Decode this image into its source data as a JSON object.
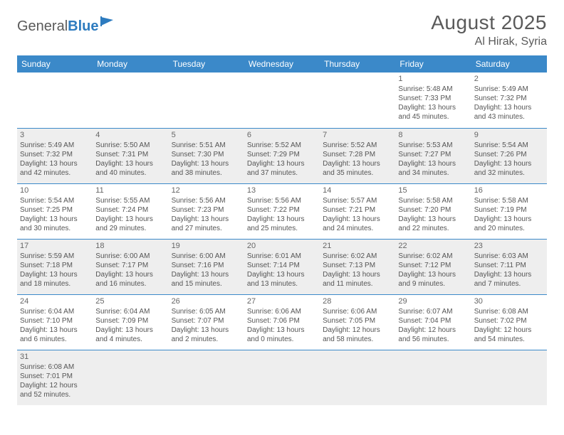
{
  "logo": {
    "text1": "General",
    "text2": "Blue"
  },
  "title": "August 2025",
  "location": "Al Hirak, Syria",
  "colors": {
    "header_bg": "#3b89c9",
    "header_text": "#ffffff",
    "row_shade": "#eeeeee",
    "row_plain": "#ffffff",
    "cell_border": "#3b89c9",
    "text": "#555555",
    "logo_blue": "#2d7bbf"
  },
  "weekdays": [
    "Sunday",
    "Monday",
    "Tuesday",
    "Wednesday",
    "Thursday",
    "Friday",
    "Saturday"
  ],
  "weeks": [
    [
      null,
      null,
      null,
      null,
      null,
      {
        "n": "1",
        "sr": "5:48 AM",
        "ss": "7:33 PM",
        "dl": "13 hours and 45 minutes."
      },
      {
        "n": "2",
        "sr": "5:49 AM",
        "ss": "7:32 PM",
        "dl": "13 hours and 43 minutes."
      }
    ],
    [
      {
        "n": "3",
        "sr": "5:49 AM",
        "ss": "7:32 PM",
        "dl": "13 hours and 42 minutes."
      },
      {
        "n": "4",
        "sr": "5:50 AM",
        "ss": "7:31 PM",
        "dl": "13 hours and 40 minutes."
      },
      {
        "n": "5",
        "sr": "5:51 AM",
        "ss": "7:30 PM",
        "dl": "13 hours and 38 minutes."
      },
      {
        "n": "6",
        "sr": "5:52 AM",
        "ss": "7:29 PM",
        "dl": "13 hours and 37 minutes."
      },
      {
        "n": "7",
        "sr": "5:52 AM",
        "ss": "7:28 PM",
        "dl": "13 hours and 35 minutes."
      },
      {
        "n": "8",
        "sr": "5:53 AM",
        "ss": "7:27 PM",
        "dl": "13 hours and 34 minutes."
      },
      {
        "n": "9",
        "sr": "5:54 AM",
        "ss": "7:26 PM",
        "dl": "13 hours and 32 minutes."
      }
    ],
    [
      {
        "n": "10",
        "sr": "5:54 AM",
        "ss": "7:25 PM",
        "dl": "13 hours and 30 minutes."
      },
      {
        "n": "11",
        "sr": "5:55 AM",
        "ss": "7:24 PM",
        "dl": "13 hours and 29 minutes."
      },
      {
        "n": "12",
        "sr": "5:56 AM",
        "ss": "7:23 PM",
        "dl": "13 hours and 27 minutes."
      },
      {
        "n": "13",
        "sr": "5:56 AM",
        "ss": "7:22 PM",
        "dl": "13 hours and 25 minutes."
      },
      {
        "n": "14",
        "sr": "5:57 AM",
        "ss": "7:21 PM",
        "dl": "13 hours and 24 minutes."
      },
      {
        "n": "15",
        "sr": "5:58 AM",
        "ss": "7:20 PM",
        "dl": "13 hours and 22 minutes."
      },
      {
        "n": "16",
        "sr": "5:58 AM",
        "ss": "7:19 PM",
        "dl": "13 hours and 20 minutes."
      }
    ],
    [
      {
        "n": "17",
        "sr": "5:59 AM",
        "ss": "7:18 PM",
        "dl": "13 hours and 18 minutes."
      },
      {
        "n": "18",
        "sr": "6:00 AM",
        "ss": "7:17 PM",
        "dl": "13 hours and 16 minutes."
      },
      {
        "n": "19",
        "sr": "6:00 AM",
        "ss": "7:16 PM",
        "dl": "13 hours and 15 minutes."
      },
      {
        "n": "20",
        "sr": "6:01 AM",
        "ss": "7:14 PM",
        "dl": "13 hours and 13 minutes."
      },
      {
        "n": "21",
        "sr": "6:02 AM",
        "ss": "7:13 PM",
        "dl": "13 hours and 11 minutes."
      },
      {
        "n": "22",
        "sr": "6:02 AM",
        "ss": "7:12 PM",
        "dl": "13 hours and 9 minutes."
      },
      {
        "n": "23",
        "sr": "6:03 AM",
        "ss": "7:11 PM",
        "dl": "13 hours and 7 minutes."
      }
    ],
    [
      {
        "n": "24",
        "sr": "6:04 AM",
        "ss": "7:10 PM",
        "dl": "13 hours and 6 minutes."
      },
      {
        "n": "25",
        "sr": "6:04 AM",
        "ss": "7:09 PM",
        "dl": "13 hours and 4 minutes."
      },
      {
        "n": "26",
        "sr": "6:05 AM",
        "ss": "7:07 PM",
        "dl": "13 hours and 2 minutes."
      },
      {
        "n": "27",
        "sr": "6:06 AM",
        "ss": "7:06 PM",
        "dl": "13 hours and 0 minutes."
      },
      {
        "n": "28",
        "sr": "6:06 AM",
        "ss": "7:05 PM",
        "dl": "12 hours and 58 minutes."
      },
      {
        "n": "29",
        "sr": "6:07 AM",
        "ss": "7:04 PM",
        "dl": "12 hours and 56 minutes."
      },
      {
        "n": "30",
        "sr": "6:08 AM",
        "ss": "7:02 PM",
        "dl": "12 hours and 54 minutes."
      }
    ],
    [
      {
        "n": "31",
        "sr": "6:08 AM",
        "ss": "7:01 PM",
        "dl": "12 hours and 52 minutes."
      },
      null,
      null,
      null,
      null,
      null,
      null
    ]
  ],
  "labels": {
    "sunrise": "Sunrise:",
    "sunset": "Sunset:",
    "daylight": "Daylight:"
  }
}
